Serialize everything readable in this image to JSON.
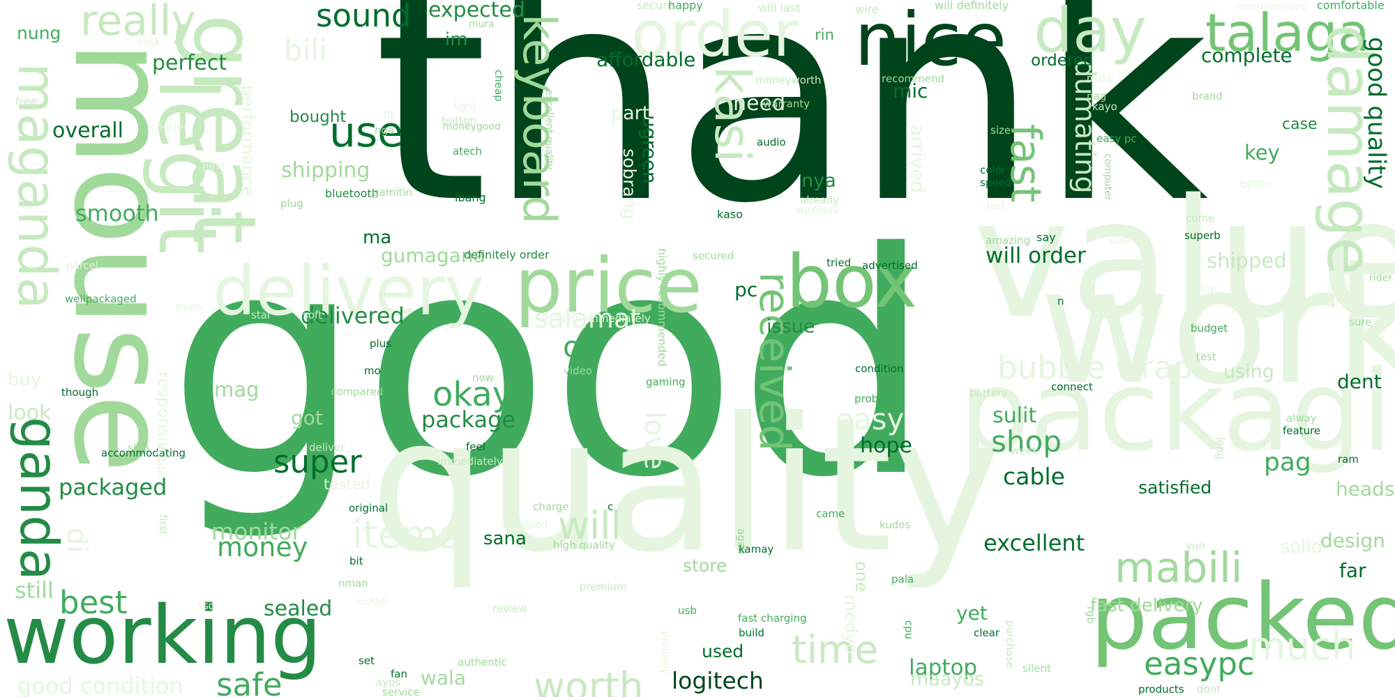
{
  "palette": {
    "c1": "#00441b",
    "c2": "#006d2c",
    "c3": "#238b45",
    "c4": "#41ab5d",
    "c5": "#74c476",
    "c6": "#a1d99b",
    "c7": "#c7e9c0",
    "c8": "#e5f5e0"
  },
  "words": [
    {
      "text": "thank",
      "c": "c1"
    },
    {
      "text": "good",
      "c": "c4"
    },
    {
      "text": "quality",
      "c": "c8"
    },
    {
      "text": "value",
      "c": "c8"
    },
    {
      "text": "work",
      "c": "c8"
    },
    {
      "text": "mouse",
      "c": "c6"
    },
    {
      "text": "packaging",
      "c": "c8"
    },
    {
      "text": "packed",
      "c": "c5"
    },
    {
      "text": "working",
      "c": "c3"
    },
    {
      "text": "nice",
      "c": "c1"
    },
    {
      "text": "price",
      "c": "c6"
    },
    {
      "text": "box",
      "c": "c5"
    },
    {
      "text": "great",
      "c": "c7"
    },
    {
      "text": "legit",
      "c": "c7"
    },
    {
      "text": "delivery",
      "c": "c8"
    },
    {
      "text": "order",
      "c": "c8"
    },
    {
      "text": "day",
      "c": "c7"
    },
    {
      "text": "talaga",
      "c": "c5"
    },
    {
      "text": "damage",
      "c": "c7"
    },
    {
      "text": "maganda",
      "c": "c7"
    },
    {
      "text": "ganda",
      "c": "c3"
    },
    {
      "text": "keyboard",
      "c": "c6"
    },
    {
      "text": "kasi",
      "c": "c7"
    },
    {
      "text": "fast",
      "c": "c5"
    },
    {
      "text": "received",
      "c": "c5"
    },
    {
      "text": "use",
      "c": "c2"
    },
    {
      "text": "really",
      "c": "c7"
    },
    {
      "text": "items",
      "c": "c8"
    },
    {
      "text": "time",
      "c": "c7"
    },
    {
      "text": "worth",
      "c": "c7"
    },
    {
      "text": "much",
      "c": "c8"
    },
    {
      "text": "mabili",
      "c": "c6"
    },
    {
      "text": "easypc",
      "c": "c4"
    },
    {
      "text": "safe",
      "c": "c4"
    },
    {
      "text": "okay",
      "c": "c4"
    },
    {
      "text": "super",
      "c": "c2"
    },
    {
      "text": "will",
      "c": "c7"
    },
    {
      "text": "best",
      "c": "c4"
    },
    {
      "text": "bubble wrap",
      "c": "c8"
    },
    {
      "text": "sound",
      "c": "c2"
    },
    {
      "text": "dumating",
      "c": "c7"
    },
    {
      "text": "good quality",
      "c": "c2"
    },
    {
      "text": "bili",
      "c": "c8"
    },
    {
      "text": "shop",
      "c": "c4"
    },
    {
      "text": "love",
      "c": "c8"
    },
    {
      "text": "package",
      "c": "c3"
    },
    {
      "text": "ok",
      "c": "c4"
    },
    {
      "text": "money",
      "c": "c4"
    },
    {
      "text": "monitor",
      "c": "c6"
    },
    {
      "text": "salamat",
      "c": "c8"
    },
    {
      "text": "pag",
      "c": "c4"
    },
    {
      "text": "easy",
      "c": "c8"
    },
    {
      "text": "will order",
      "c": "c2"
    },
    {
      "text": "excellent",
      "c": "c2"
    },
    {
      "text": "cable",
      "c": "c2"
    },
    {
      "text": "logitech",
      "c": "c1"
    },
    {
      "text": "laptop",
      "c": "c4"
    },
    {
      "text": "expected",
      "c": "c3"
    },
    {
      "text": "affordable",
      "c": "c2"
    },
    {
      "text": "complete",
      "c": "c2"
    },
    {
      "text": "perfect",
      "c": "c3"
    },
    {
      "text": "overall",
      "c": "c2"
    },
    {
      "text": "smooth",
      "c": "c4"
    },
    {
      "text": "packaged",
      "c": "c3"
    },
    {
      "text": "delivered",
      "c": "c3"
    },
    {
      "text": "shipping",
      "c": "c6"
    },
    {
      "text": "performance",
      "c": "c8"
    },
    {
      "text": "gumagana",
      "c": "c6"
    },
    {
      "text": "ugreen",
      "c": "c2"
    },
    {
      "text": "sobrang",
      "c": "c8"
    },
    {
      "text": "part",
      "c": "c8"
    },
    {
      "text": "need",
      "c": "c8"
    },
    {
      "text": "nya",
      "c": "c3"
    },
    {
      "text": "mic",
      "c": "c2"
    },
    {
      "text": "arrived",
      "c": "c8"
    },
    {
      "text": "shipped",
      "c": "c7"
    },
    {
      "text": "key",
      "c": "c4"
    },
    {
      "text": "case",
      "c": "c3"
    },
    {
      "text": "ordered",
      "c": "c2"
    },
    {
      "text": "nung",
      "c": "c4"
    },
    {
      "text": "im",
      "c": "c3"
    },
    {
      "text": "ma",
      "c": "c2"
    },
    {
      "text": "pc",
      "c": "c2"
    },
    {
      "text": "issue",
      "c": "c3"
    },
    {
      "text": "hope",
      "c": "c2"
    },
    {
      "text": "sulit",
      "c": "c4"
    },
    {
      "text": "using",
      "c": "c7"
    },
    {
      "text": "dent",
      "c": "c2"
    },
    {
      "text": "headset",
      "c": "c6"
    },
    {
      "text": "satisfied",
      "c": "c2"
    },
    {
      "text": "far",
      "c": "c2"
    },
    {
      "text": "design",
      "c": "c6"
    },
    {
      "text": "solid",
      "c": "c8"
    },
    {
      "text": "fast delivery",
      "c": "c6"
    },
    {
      "text": "yet",
      "c": "c4"
    },
    {
      "text": "maayos",
      "c": "c7"
    },
    {
      "text": "wala",
      "c": "c6"
    },
    {
      "text": "used",
      "c": "c2"
    },
    {
      "text": "sana",
      "c": "c2"
    },
    {
      "text": "store",
      "c": "c6"
    },
    {
      "text": "one",
      "c": "c7"
    },
    {
      "text": "medyo",
      "c": "c8"
    },
    {
      "text": "got",
      "c": "c6"
    },
    {
      "text": "mag",
      "c": "c6"
    },
    {
      "text": "still",
      "c": "c6"
    },
    {
      "text": "sealed",
      "c": "c3"
    },
    {
      "text": "di",
      "c": "c8"
    },
    {
      "text": "look",
      "c": "c7"
    },
    {
      "text": "buy",
      "c": "c8"
    },
    {
      "text": "responsive",
      "c": "c8"
    },
    {
      "text": "good condition",
      "c": "c8"
    },
    {
      "text": "bought",
      "c": "c3"
    },
    {
      "text": "tested",
      "c": "c8"
    },
    {
      "text": "highly recommended",
      "c": "c6"
    },
    {
      "text": "definitely order",
      "c": "c3"
    },
    {
      "text": "secure",
      "c": "c7"
    },
    {
      "text": "happy",
      "c": "c4"
    },
    {
      "text": "will last",
      "c": "c7"
    },
    {
      "text": "wire",
      "c": "c7"
    },
    {
      "text": "will definitely",
      "c": "c6"
    },
    {
      "text": "recommended",
      "c": "c8"
    },
    {
      "text": "comfortable",
      "c": "c4"
    },
    {
      "text": "mura",
      "c": "c6"
    },
    {
      "text": "cheap",
      "c": "c4"
    },
    {
      "text": "rin",
      "c": "c4"
    },
    {
      "text": "moneyworth",
      "c": "c7"
    },
    {
      "text": "recommend",
      "c": "c6"
    },
    {
      "text": "make",
      "c": "c8"
    },
    {
      "text": "nag",
      "c": "c6"
    },
    {
      "text": "brand",
      "c": "c6"
    },
    {
      "text": "excellent quality",
      "c": "c6"
    },
    {
      "text": "moneygood",
      "c": "c6"
    },
    {
      "text": "light",
      "c": "c8"
    },
    {
      "text": "button",
      "c": "c7"
    },
    {
      "text": "warranty",
      "c": "c6"
    },
    {
      "text": "kayo",
      "c": "c7"
    },
    {
      "text": "size",
      "c": "c6"
    },
    {
      "text": "easy pc",
      "c": "c4"
    },
    {
      "text": "atech",
      "c": "c4"
    },
    {
      "text": "audio",
      "c": "c2"
    },
    {
      "text": "color",
      "c": "c2"
    },
    {
      "text": "speed",
      "c": "c2"
    },
    {
      "text": "better",
      "c": "c8"
    },
    {
      "text": "computer",
      "c": "c6"
    },
    {
      "text": "already",
      "c": "c7"
    },
    {
      "text": "wireless",
      "c": "c8"
    },
    {
      "text": "last",
      "c": "c8"
    },
    {
      "text": "come",
      "c": "c7"
    },
    {
      "text": "play",
      "c": "c8"
    },
    {
      "text": "ibang",
      "c": "c2"
    },
    {
      "text": "kaso",
      "c": "c2"
    },
    {
      "text": "say",
      "c": "c2"
    },
    {
      "text": "superb",
      "c": "c2"
    },
    {
      "text": "amazing",
      "c": "c6"
    },
    {
      "text": "secured",
      "c": "c6"
    },
    {
      "text": "tried",
      "c": "c2"
    },
    {
      "text": "advertised",
      "c": "c2"
    },
    {
      "text": "rider",
      "c": "c6"
    },
    {
      "text": "free",
      "c": "c7"
    },
    {
      "text": "click",
      "c": "c8"
    },
    {
      "text": "courier",
      "c": "c8"
    },
    {
      "text": "fit",
      "c": "c8"
    },
    {
      "text": "nga",
      "c": "c6"
    },
    {
      "text": "next",
      "c": "c8"
    },
    {
      "text": "plug",
      "c": "c6"
    },
    {
      "text": "bluetooth",
      "c": "c3"
    },
    {
      "text": "gamitin",
      "c": "c6"
    },
    {
      "text": "parcel",
      "c": "c8"
    },
    {
      "text": "wellpackaged",
      "c": "c4"
    },
    {
      "text": "star",
      "c": "c7"
    },
    {
      "text": "soft",
      "c": "c7"
    },
    {
      "text": "shipped immediately",
      "c": "c8"
    },
    {
      "text": "even",
      "c": "c8"
    },
    {
      "text": "n",
      "c": "c2"
    },
    {
      "text": "budget",
      "c": "c4"
    },
    {
      "text": "sure",
      "c": "c6"
    },
    {
      "text": "think",
      "c": "c8"
    },
    {
      "text": "plus",
      "c": "c2"
    },
    {
      "text": "mo",
      "c": "c2"
    },
    {
      "text": "now",
      "c": "c6"
    },
    {
      "text": "video",
      "c": "c6"
    },
    {
      "text": "condition",
      "c": "c2"
    },
    {
      "text": "test",
      "c": "c6"
    },
    {
      "text": "gaming",
      "c": "c4"
    },
    {
      "text": "though",
      "c": "c2"
    },
    {
      "text": "compared",
      "c": "c6"
    },
    {
      "text": "problem",
      "c": "c4"
    },
    {
      "text": "battery",
      "c": "c7"
    },
    {
      "text": "connect",
      "c": "c2"
    },
    {
      "text": "alway",
      "c": "c6"
    },
    {
      "text": "feature",
      "c": "c2"
    },
    {
      "text": "ram",
      "c": "c2"
    },
    {
      "text": "ship",
      "c": "c6"
    },
    {
      "text": "accommodating",
      "c": "c2"
    },
    {
      "text": "durable",
      "c": "c8"
    },
    {
      "text": "deliver",
      "c": "c7"
    },
    {
      "text": "feel",
      "c": "c2"
    },
    {
      "text": "immediately",
      "c": "c7"
    },
    {
      "text": "week",
      "c": "c7"
    },
    {
      "text": "long",
      "c": "c7"
    },
    {
      "text": "first",
      "c": "c7"
    },
    {
      "text": "original",
      "c": "c2"
    },
    {
      "text": "charge",
      "c": "c6"
    },
    {
      "text": "c",
      "c": "c2"
    },
    {
      "text": "wrapped",
      "c": "c8"
    },
    {
      "text": "high quality",
      "c": "c6"
    },
    {
      "text": "came",
      "c": "c4"
    },
    {
      "text": "kudos",
      "c": "c6"
    },
    {
      "text": "agad",
      "c": "c6"
    },
    {
      "text": "yun",
      "c": "c7"
    },
    {
      "text": "kamay",
      "c": "c2"
    },
    {
      "text": "bit",
      "c": "c2"
    },
    {
      "text": "nman",
      "c": "c6"
    },
    {
      "text": "premium",
      "c": "c7"
    },
    {
      "text": "pala",
      "c": "c4"
    },
    {
      "text": "install",
      "c": "c8"
    },
    {
      "text": "review",
      "c": "c7"
    },
    {
      "text": "usb",
      "c": "c4"
    },
    {
      "text": "fast charging",
      "c": "c4"
    },
    {
      "text": "build",
      "c": "c2"
    },
    {
      "text": "clear",
      "c": "c2"
    },
    {
      "text": "rgb",
      "c": "c6"
    },
    {
      "text": "cpu",
      "c": "c4"
    },
    {
      "text": "ssd",
      "c": "c8"
    },
    {
      "text": "properly",
      "c": "c8"
    },
    {
      "text": "set",
      "c": "c2"
    },
    {
      "text": "authentic",
      "c": "c6"
    },
    {
      "text": "purchase",
      "c": "c7"
    },
    {
      "text": "fan",
      "c": "c2"
    },
    {
      "text": "ayos",
      "c": "c7"
    },
    {
      "text": "service",
      "c": "c6"
    },
    {
      "text": "silent",
      "c": "c6"
    },
    {
      "text": "products",
      "c": "c2"
    },
    {
      "text": "dont",
      "c": "c7"
    }
  ]
}
